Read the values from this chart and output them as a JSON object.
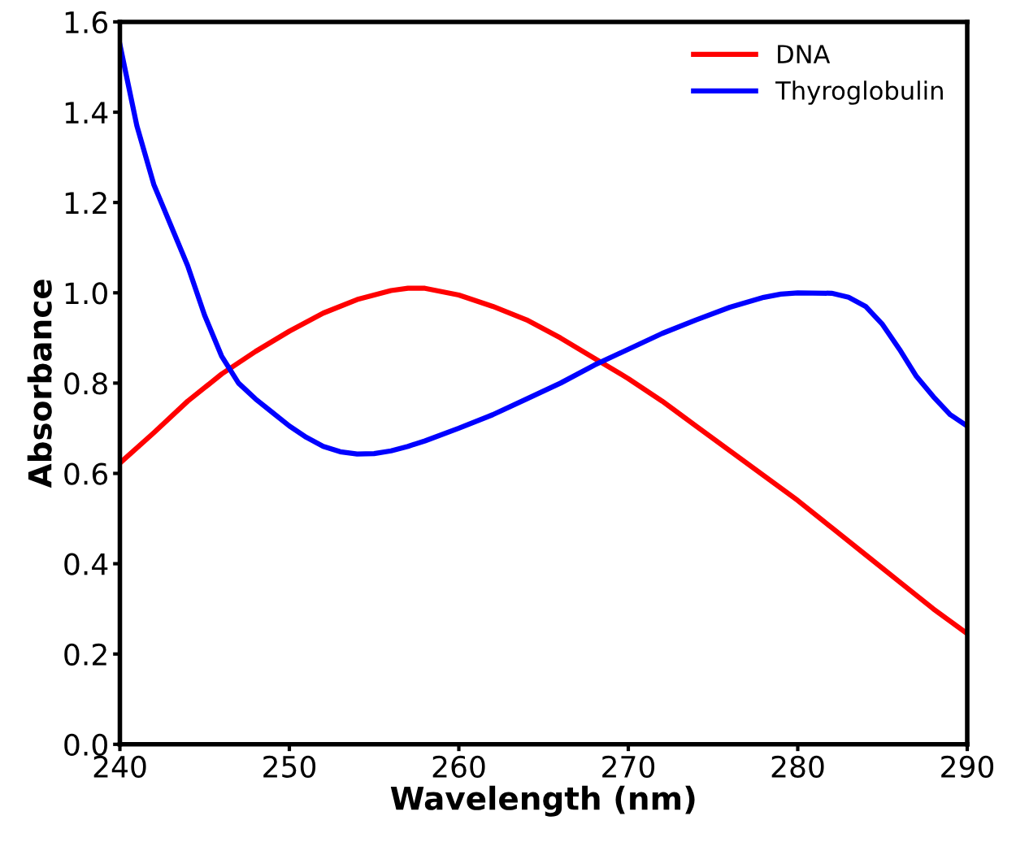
{
  "chart_data": {
    "type": "line",
    "xlabel": "Wavelength (nm)",
    "ylabel": "Absorbance",
    "xlim": [
      240,
      290
    ],
    "xticks": [
      240,
      250,
      260,
      270,
      280,
      290
    ],
    "ylim": [
      0.0,
      1.6
    ],
    "yticks": [
      {
        "value": 0.0,
        "label": "0.0"
      },
      0.2,
      0.4,
      0.6,
      0.8,
      {
        "value": 1.0,
        "label": "1.0"
      },
      1.2,
      1.4,
      1.6
    ],
    "grid": false,
    "legend": "top right",
    "marker": "none",
    "line_style": "solid",
    "series": [
      {
        "name": "DNA",
        "color": "#ff0000",
        "x": [
          240,
          242,
          244,
          246,
          248,
          250,
          252,
          254,
          256,
          257,
          258,
          260,
          262,
          264,
          266,
          268,
          270,
          272,
          274,
          276,
          278,
          280,
          282,
          284,
          286,
          288,
          290
        ],
        "values": [
          0.623,
          0.69,
          0.76,
          0.82,
          0.87,
          0.915,
          0.955,
          0.985,
          1.005,
          1.01,
          1.01,
          0.995,
          0.97,
          0.94,
          0.9,
          0.855,
          0.81,
          0.76,
          0.705,
          0.65,
          0.595,
          0.54,
          0.48,
          0.42,
          0.36,
          0.3,
          0.245
        ]
      },
      {
        "name": "Thyroglobulin",
        "color": "#0000ff",
        "x": [
          240,
          241,
          242,
          243,
          244,
          245,
          246,
          247,
          248,
          249,
          250,
          251,
          252,
          253,
          254,
          255,
          256,
          257,
          258,
          260,
          262,
          264,
          266,
          268,
          270,
          272,
          274,
          276,
          278,
          279,
          280,
          282,
          283,
          284,
          285,
          286,
          287,
          288,
          289,
          290
        ],
        "values": [
          1.55,
          1.37,
          1.24,
          1.15,
          1.06,
          0.95,
          0.86,
          0.8,
          0.765,
          0.735,
          0.705,
          0.68,
          0.66,
          0.648,
          0.643,
          0.644,
          0.65,
          0.66,
          0.672,
          0.7,
          0.73,
          0.765,
          0.8,
          0.84,
          0.875,
          0.91,
          0.94,
          0.968,
          0.99,
          0.997,
          1.0,
          0.999,
          0.99,
          0.97,
          0.93,
          0.875,
          0.815,
          0.77,
          0.73,
          0.705
        ]
      }
    ]
  }
}
